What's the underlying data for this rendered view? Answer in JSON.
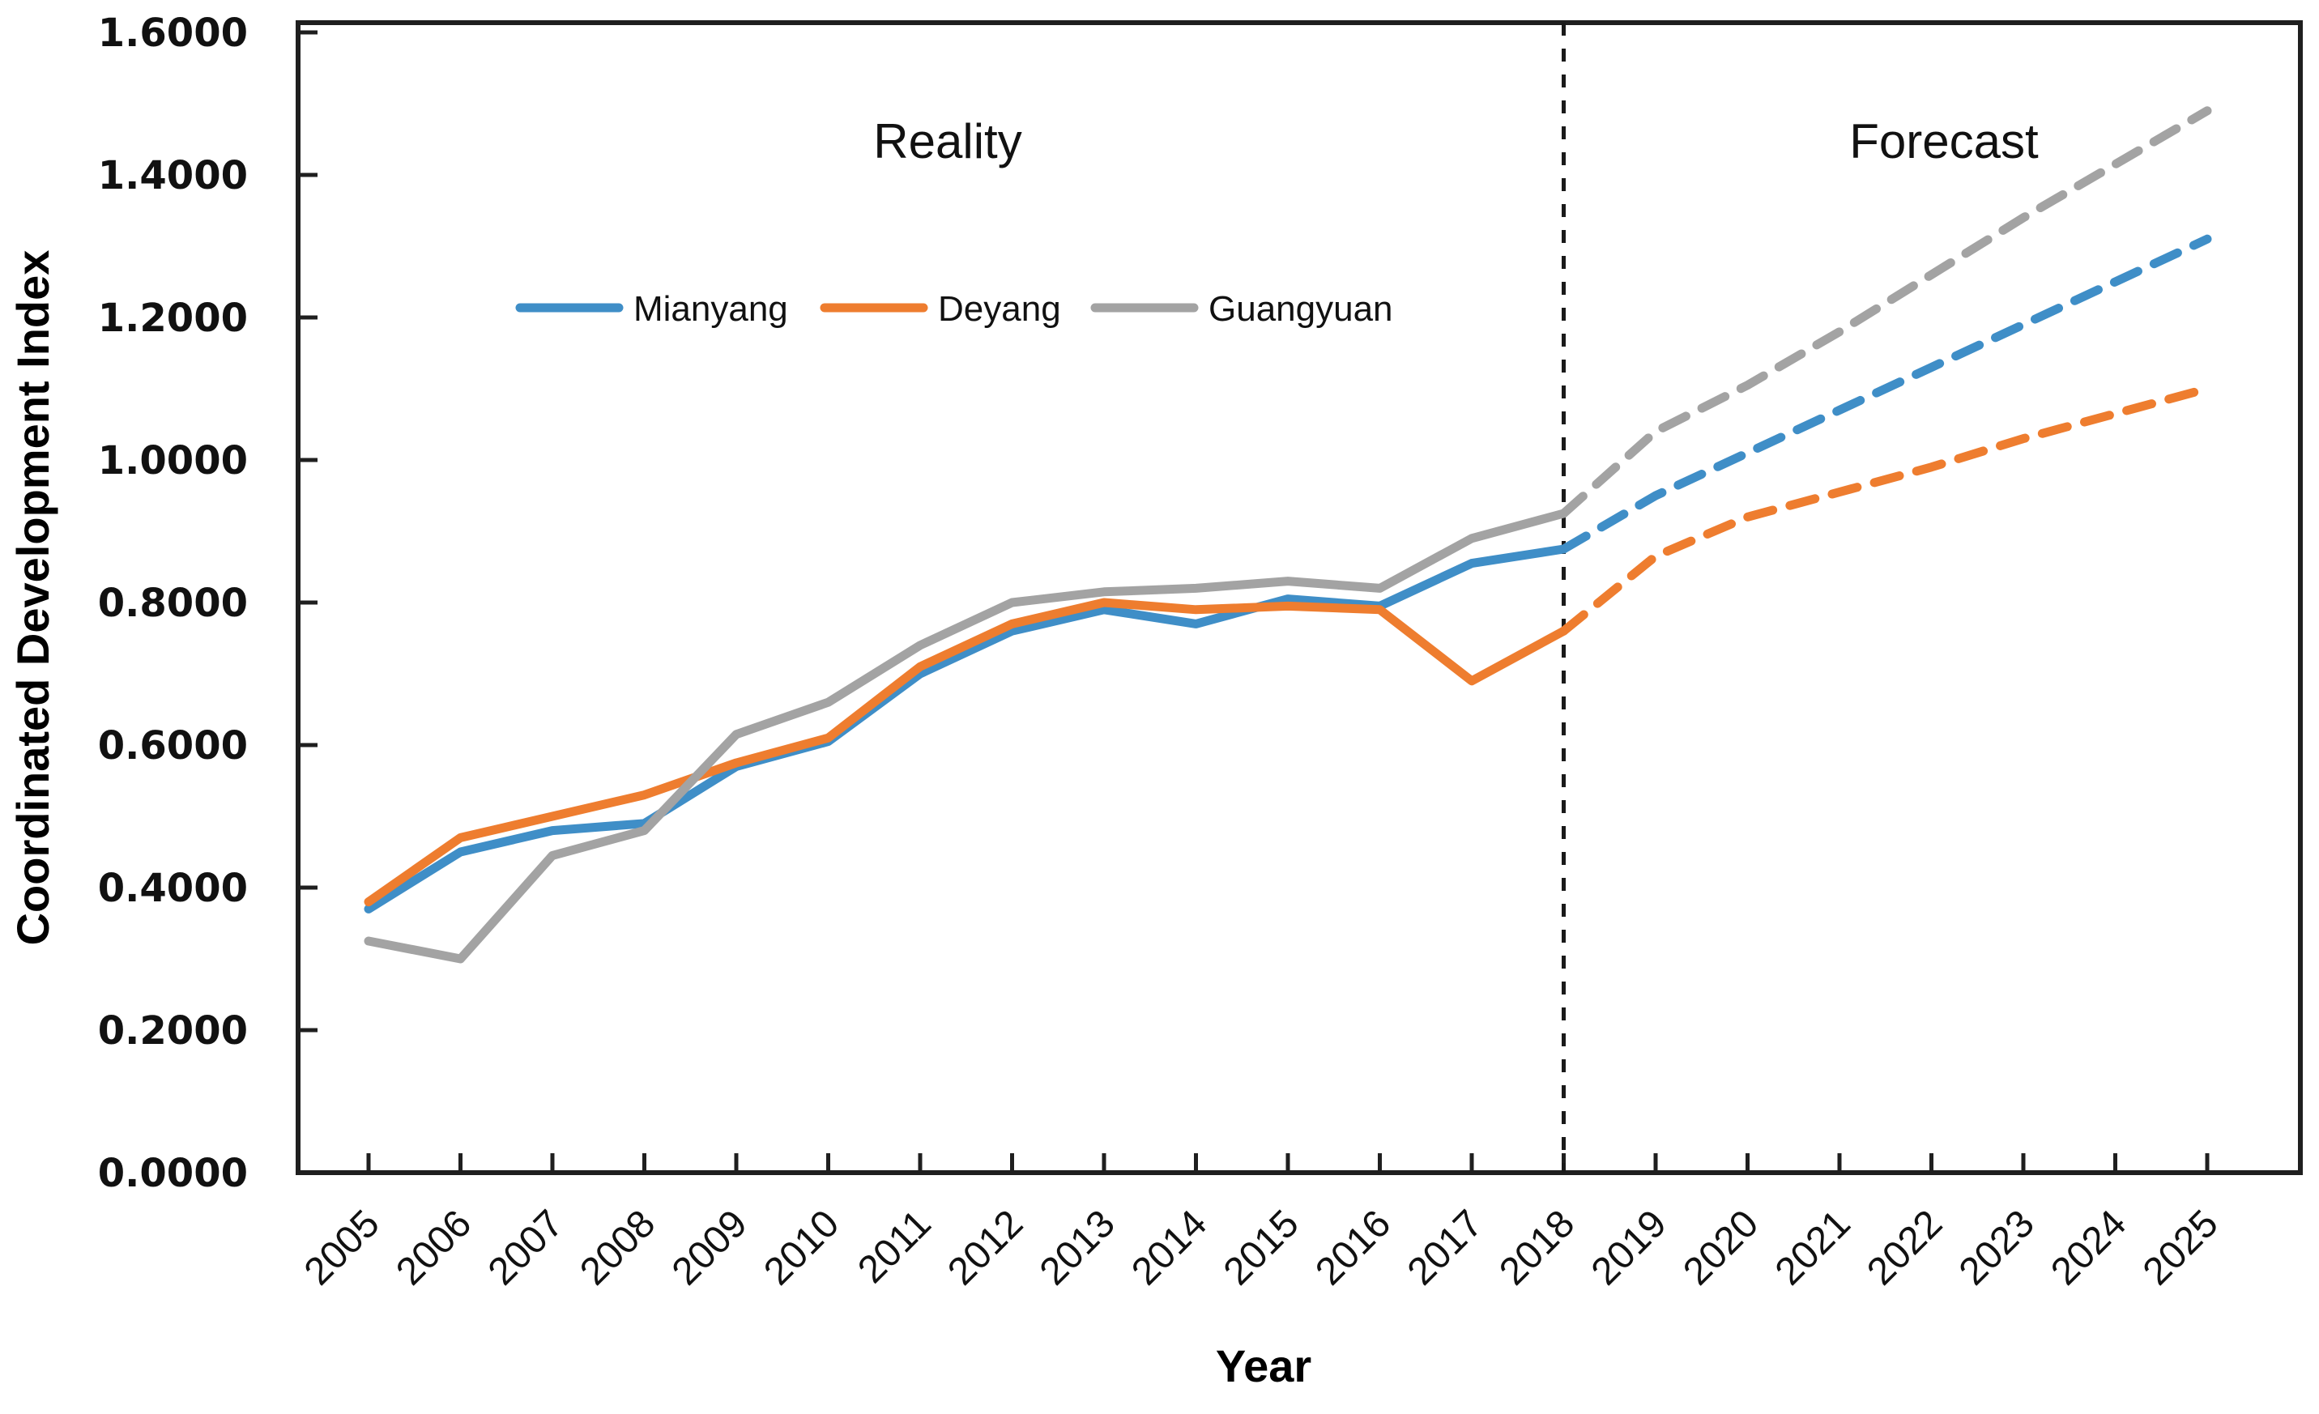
{
  "chart_data": {
    "type": "line",
    "title": "",
    "xlabel": "Year",
    "ylabel": "Coordinated Development Index",
    "region_labels": {
      "left": "Reality",
      "right": "Forecast"
    },
    "x": [
      2005,
      2006,
      2007,
      2008,
      2009,
      2010,
      2011,
      2012,
      2013,
      2014,
      2015,
      2016,
      2017,
      2018,
      2019,
      2020,
      2021,
      2022,
      2023,
      2024,
      2025
    ],
    "series": [
      {
        "name": "Mianyang",
        "color": "#3f8ec7",
        "values": [
          0.37,
          0.45,
          0.48,
          0.49,
          0.57,
          0.605,
          0.7,
          0.76,
          0.79,
          0.77,
          0.805,
          0.795,
          0.855,
          0.875,
          0.95,
          1.01,
          1.07,
          1.13,
          1.19,
          1.25,
          1.31
        ]
      },
      {
        "name": "Deyang",
        "color": "#ee7d2f",
        "values": [
          0.38,
          0.47,
          0.5,
          0.53,
          0.575,
          0.61,
          0.71,
          0.77,
          0.8,
          0.79,
          0.795,
          0.79,
          0.69,
          0.76,
          0.865,
          0.92,
          0.955,
          0.99,
          1.03,
          1.065,
          1.1
        ]
      },
      {
        "name": "Guangyuan",
        "color": "#a3a3a3",
        "values": [
          0.325,
          0.3,
          0.445,
          0.48,
          0.615,
          0.66,
          0.74,
          0.8,
          0.815,
          0.82,
          0.83,
          0.82,
          0.89,
          0.925,
          1.04,
          1.105,
          1.18,
          1.26,
          1.34,
          1.415,
          1.49
        ]
      }
    ],
    "forecast_boundary_year": 2018,
    "line_style_reality": "solid",
    "line_style_forecast": "dashed",
    "ylim": [
      0,
      1.6
    ],
    "ytick_step": 0.2,
    "ytick_decimals": 4,
    "grid": false,
    "legend_position": "top-left-inside",
    "axis_color": "#1f1f1f",
    "separator_color": "#1a1a1a",
    "background_color": "#ffffff"
  }
}
